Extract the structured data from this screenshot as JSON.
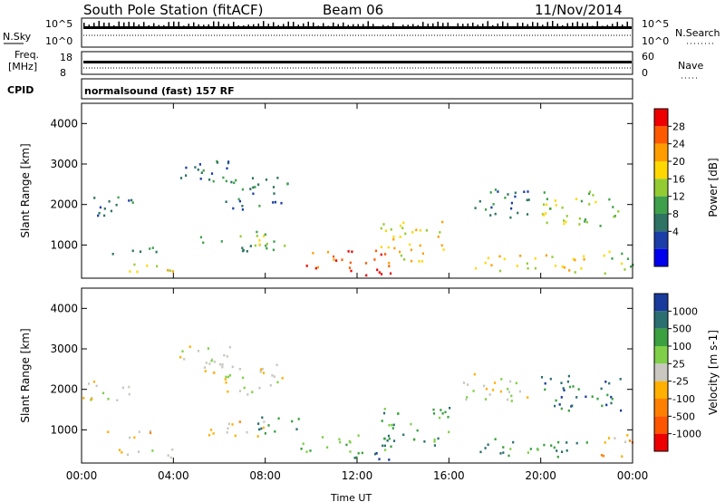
{
  "header": {
    "title": "South Pole Station (fitACF)",
    "beam": "Beam 06",
    "date": "11/Nov/2014"
  },
  "status_panels": {
    "nsky_label": "N.Sky",
    "nsky_ticks": [
      "10^5",
      "10^0"
    ],
    "nsearch_label": "N.Search",
    "nsearch_ticks": [
      "10^5",
      "10^0"
    ],
    "freq_label_line1": "Freq.",
    "freq_label_line2": "[MHz]",
    "freq_ticks": [
      "18",
      "8"
    ],
    "nave_label": "Nave",
    "nave_ticks": [
      "60",
      "0"
    ],
    "cpid_label": "CPID",
    "cpid_value": "normalsound (fast) 157 RF"
  },
  "chart_data": [
    {
      "type": "heatmap",
      "name": "power",
      "ylabel": "Slant Range [km]",
      "xlabel": "Time UT",
      "xlim_hours": [
        0,
        24
      ],
      "ylim_km": [
        180,
        4500
      ],
      "y_ticks": [
        1000,
        2000,
        3000,
        4000
      ],
      "x_ticks": [
        "00:00",
        "04:00",
        "08:00",
        "12:00",
        "16:00",
        "20:00",
        "00:00"
      ],
      "colorbar": {
        "label": "Power [dB]",
        "tick_labels": [
          "28",
          "24",
          "20",
          "16",
          "12",
          "8",
          "4"
        ],
        "bands": [
          "#ee0000",
          "#ff5a00",
          "#ff9d00",
          "#ffd800",
          "#93cc32",
          "#3fa04c",
          "#2e7363",
          "#1a3da8",
          "#0000ee"
        ]
      },
      "regions": [
        {
          "t": [
            0.0,
            2.2
          ],
          "r": [
            1750,
            2300
          ],
          "cls": 2
        },
        {
          "t": [
            1.0,
            3.5
          ],
          "r": [
            780,
            1000
          ],
          "cls": 3
        },
        {
          "t": [
            1.5,
            4.0
          ],
          "r": [
            300,
            600
          ],
          "cls": 5
        },
        {
          "t": [
            4.2,
            6.5
          ],
          "r": [
            2400,
            3100
          ],
          "cls": 2
        },
        {
          "t": [
            6.0,
            9.0
          ],
          "r": [
            1900,
            2700
          ],
          "cls": 2
        },
        {
          "t": [
            5.0,
            8.0
          ],
          "r": [
            850,
            1250
          ],
          "cls": 3
        },
        {
          "t": [
            7.5,
            9.5
          ],
          "r": [
            900,
            1400
          ],
          "cls": 4
        },
        {
          "t": [
            9.5,
            13.5
          ],
          "r": [
            450,
            900
          ],
          "cls": 7
        },
        {
          "t": [
            11.5,
            13.5
          ],
          "r": [
            220,
            500
          ],
          "cls": 9
        },
        {
          "t": [
            13.0,
            16.0
          ],
          "r": [
            600,
            1600
          ],
          "cls": 5
        },
        {
          "t": [
            16.5,
            19.5
          ],
          "r": [
            1700,
            2400
          ],
          "cls": 2
        },
        {
          "t": [
            17.0,
            22.0
          ],
          "r": [
            350,
            800
          ],
          "cls": 5
        },
        {
          "t": [
            20.0,
            23.5
          ],
          "r": [
            1500,
            2400
          ],
          "cls": 4
        },
        {
          "t": [
            22.5,
            24.0
          ],
          "r": [
            300,
            900
          ],
          "cls": 4
        }
      ]
    },
    {
      "type": "heatmap",
      "name": "velocity",
      "ylabel": "Slant Range [km]",
      "xlabel": "Time UT",
      "xlim_hours": [
        0,
        24
      ],
      "ylim_km": [
        180,
        4500
      ],
      "y_ticks": [
        1000,
        2000,
        3000,
        4000
      ],
      "x_ticks": [
        "00:00",
        "04:00",
        "08:00",
        "12:00",
        "16:00",
        "20:00",
        "00:00"
      ],
      "colorbar": {
        "label": "Velocity [m s-1]",
        "tick_labels": [
          "1000",
          "500",
          "100",
          "25",
          "-25",
          "-100",
          "-500",
          "-1000"
        ],
        "bands": [
          "#1a3a9c",
          "#2b6f70",
          "#3aa040",
          "#7fd048",
          "#c8c8c0",
          "#ffb000",
          "#ff8000",
          "#ff5500",
          "#ee0000"
        ]
      },
      "regions": [
        {
          "t": [
            0.0,
            2.2
          ],
          "r": [
            1750,
            2300
          ],
          "cls": 4
        },
        {
          "t": [
            1.0,
            3.5
          ],
          "r": [
            780,
            1000
          ],
          "cls": 3
        },
        {
          "t": [
            1.5,
            4.0
          ],
          "r": [
            300,
            600
          ],
          "cls": 4
        },
        {
          "t": [
            4.2,
            6.5
          ],
          "r": [
            2400,
            3100
          ],
          "cls": 4
        },
        {
          "t": [
            6.0,
            9.0
          ],
          "r": [
            1900,
            2700
          ],
          "cls": 4
        },
        {
          "t": [
            5.0,
            8.0
          ],
          "r": [
            850,
            1250
          ],
          "cls": 3
        },
        {
          "t": [
            7.5,
            9.5
          ],
          "r": [
            900,
            1400
          ],
          "cls": 6
        },
        {
          "t": [
            9.5,
            13.5
          ],
          "r": [
            450,
            900
          ],
          "cls": 6
        },
        {
          "t": [
            11.5,
            13.5
          ],
          "r": [
            220,
            500
          ],
          "cls": 7
        },
        {
          "t": [
            13.0,
            16.0
          ],
          "r": [
            600,
            1600
          ],
          "cls": 6
        },
        {
          "t": [
            16.5,
            19.5
          ],
          "r": [
            1700,
            2400
          ],
          "cls": 4
        },
        {
          "t": [
            17.0,
            22.0
          ],
          "r": [
            350,
            800
          ],
          "cls": 6
        },
        {
          "t": [
            20.0,
            23.5
          ],
          "r": [
            1500,
            2400
          ],
          "cls": 7
        },
        {
          "t": [
            22.5,
            24.0
          ],
          "r": [
            300,
            900
          ],
          "cls": 3
        }
      ]
    }
  ]
}
